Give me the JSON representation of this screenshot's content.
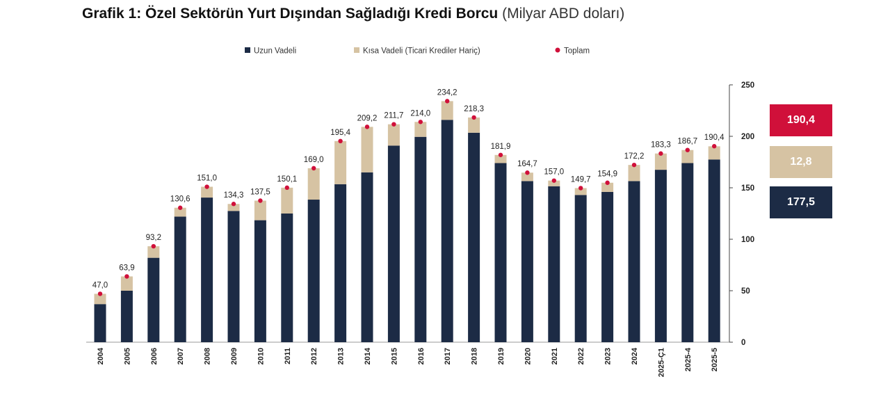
{
  "title": {
    "bold": "Grafik 1: Özel Sektörün Yurt Dışından Sağladığı Kredi Borcu",
    "unit": "(Milyar ABD doları)"
  },
  "colors": {
    "long": "#1c2b45",
    "short": "#d6c3a3",
    "total": "#d0103a",
    "axis": "#444444"
  },
  "badges": [
    {
      "label": "190,4",
      "color": "#d0103a"
    },
    {
      "label": "12,8",
      "color": "#d6c3a3"
    },
    {
      "label": "177,5",
      "color": "#1c2b45"
    }
  ],
  "chart_data": {
    "type": "bar",
    "stacked": true,
    "categories": [
      "2004",
      "2005",
      "2006",
      "2007",
      "2008",
      "2009",
      "2010",
      "2011",
      "2012",
      "2013",
      "2014",
      "2015",
      "2016",
      "2017",
      "2018",
      "2019",
      "2020",
      "2021",
      "2022",
      "2023",
      "2024",
      "2025-Ç1",
      "2025-4",
      "2025-5"
    ],
    "series": [
      {
        "name": "Uzun Vadeli",
        "values": [
          37.0,
          50.0,
          82.0,
          122.0,
          140.5,
          127.5,
          118.5,
          125.0,
          138.5,
          153.5,
          165.0,
          191.0,
          199.5,
          216.0,
          203.5,
          174.0,
          156.5,
          151.5,
          143.0,
          146.0,
          156.5,
          167.5,
          174.0,
          177.5
        ]
      },
      {
        "name": "Kısa Vadeli (Ticari Krediler Hariç)",
        "values": [
          10.0,
          13.9,
          11.2,
          8.6,
          10.5,
          6.8,
          19.0,
          25.1,
          30.5,
          41.9,
          44.2,
          20.7,
          14.5,
          18.2,
          14.8,
          7.9,
          8.2,
          5.5,
          6.7,
          8.9,
          15.7,
          15.8,
          12.7,
          12.8
        ]
      }
    ],
    "totals": {
      "name": "Toplam",
      "values": [
        47.0,
        63.9,
        93.2,
        130.6,
        151.0,
        134.3,
        137.5,
        150.1,
        169.0,
        195.4,
        209.2,
        211.7,
        214.0,
        234.2,
        218.3,
        181.9,
        164.7,
        157.0,
        149.7,
        154.9,
        172.2,
        183.3,
        186.7,
        190.4
      ],
      "labels": [
        "47,0",
        "63,9",
        "93,2",
        "130,6",
        "151,0",
        "134,3",
        "137,5",
        "150,1",
        "169,0",
        "195,4",
        "209,2",
        "211,7",
        "214,0",
        "234,2",
        "218,3",
        "181,9",
        "164,7",
        "157,0",
        "149,7",
        "154,9",
        "172,2",
        "183,3",
        "186,7",
        "190,4"
      ]
    },
    "y_axis": {
      "side": "right",
      "min": 0,
      "max": 250,
      "ticks": [
        0,
        50,
        100,
        150,
        200,
        250
      ]
    },
    "legend": {
      "position": "top"
    }
  }
}
